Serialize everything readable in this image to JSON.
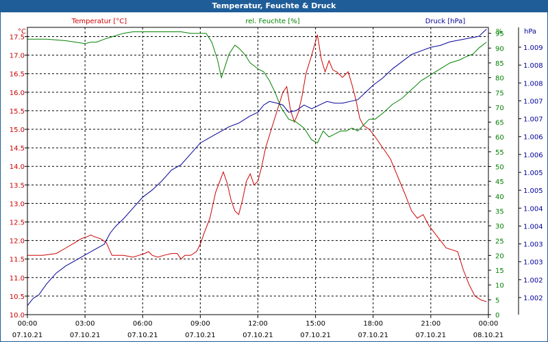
{
  "window": {
    "title": "Temperatur, Feuchte & Druck"
  },
  "colors": {
    "temperature": "#cc0000",
    "humidity": "#008000",
    "pressure": "#000099",
    "grid": "#000000",
    "title_bg": "#1f5d99"
  },
  "chart_data": {
    "type": "line",
    "title": "Temperatur, Feuchte & Druck",
    "x_ticks": [
      {
        "time": "00:00",
        "date": "07.10.21"
      },
      {
        "time": "03:00",
        "date": "07.10.21"
      },
      {
        "time": "06:00",
        "date": "07.10.21"
      },
      {
        "time": "09:00",
        "date": "07.10.21"
      },
      {
        "time": "12:00",
        "date": "07.10.21"
      },
      {
        "time": "15:00",
        "date": "07.10.21"
      },
      {
        "time": "18:00",
        "date": "07.10.21"
      },
      {
        "time": "21:00",
        "date": "07.10.21"
      },
      {
        "time": "00:00",
        "date": "08.10.21"
      }
    ],
    "xlim": [
      0,
      24
    ],
    "axes": {
      "temperature": {
        "label": "Temperatur [°C]",
        "unit": "°C",
        "ylim": [
          10.0,
          17.75
        ],
        "ticks": [
          "10.0",
          "10.5",
          "11.0",
          "11.5",
          "12.0",
          "12.5",
          "13.0",
          "13.5",
          "14.0",
          "14.5",
          "15.0",
          "15.5",
          "16.0",
          "16.5",
          "17.0",
          "17.5"
        ]
      },
      "humidity": {
        "label": "rel. Feuchte [%]",
        "unit": "%",
        "ylim": [
          0,
          97
        ],
        "ticks": [
          "0",
          "5",
          "10",
          "15",
          "20",
          "25",
          "30",
          "35",
          "40",
          "45",
          "50",
          "55",
          "60",
          "65",
          "70",
          "75",
          "80",
          "85",
          "90",
          "95"
        ]
      },
      "pressure": {
        "label": "Druck [hPa]",
        "unit": "hPa",
        "ylim": [
          1001.65,
          1009.6
        ],
        "ticks": [
          "1.002",
          "1.002",
          "1.003",
          "1.003",
          "1.004",
          "1.004",
          "1.005",
          "1.005",
          "1.006",
          "1.006",
          "1.007",
          "1.007",
          "1.008",
          "1.008",
          "1.009"
        ]
      }
    },
    "series": [
      {
        "name": "Temperatur [°C]",
        "axis": "temperature",
        "x": [
          0,
          0.8,
          1.5,
          2,
          2.5,
          2.8,
          3.1,
          3.3,
          3.5,
          3.8,
          4.1,
          4.4,
          4.7,
          5,
          5.5,
          5.8,
          6.1,
          6.3,
          6.5,
          6.8,
          7.1,
          7.5,
          7.8,
          8,
          8.2,
          8.5,
          8.8,
          9,
          9.2,
          9.5,
          9.8,
          10.2,
          10.4,
          10.6,
          10.8,
          11,
          11.2,
          11.4,
          11.6,
          11.8,
          12,
          12.2,
          12.4,
          12.7,
          13,
          13.3,
          13.5,
          13.7,
          13.9,
          14.1,
          14.3,
          14.5,
          14.8,
          15.1,
          15.3,
          15.5,
          15.7,
          15.9,
          16.1,
          16.4,
          16.7,
          16.9,
          17.1,
          17.3,
          17.5,
          17.8,
          18.1,
          18.5,
          18.9,
          19.3,
          19.7,
          20,
          20.3,
          20.6,
          20.9,
          21.2,
          21.5,
          21.8,
          22.1,
          22.4,
          22.7,
          23,
          23.3,
          23.6,
          23.9
        ],
        "y": [
          11.6,
          11.6,
          11.65,
          11.8,
          11.95,
          12.05,
          12.1,
          12.15,
          12.1,
          12.05,
          11.95,
          11.6,
          11.6,
          11.6,
          11.55,
          11.6,
          11.65,
          11.7,
          11.6,
          11.55,
          11.6,
          11.65,
          11.65,
          11.5,
          11.6,
          11.6,
          11.7,
          11.9,
          12.2,
          12.6,
          13.3,
          13.85,
          13.55,
          13.1,
          12.8,
          12.7,
          13.1,
          13.6,
          13.8,
          13.5,
          13.6,
          14.0,
          14.5,
          15.0,
          15.5,
          16.0,
          16.15,
          15.5,
          15.2,
          15.45,
          15.9,
          16.5,
          17.0,
          17.55,
          16.9,
          16.55,
          16.85,
          16.6,
          16.55,
          16.4,
          16.55,
          16.2,
          15.8,
          15.3,
          15.1,
          15.0,
          14.8,
          14.5,
          14.2,
          13.7,
          13.2,
          12.8,
          12.6,
          12.7,
          12.4,
          12.2,
          12.0,
          11.8,
          11.75,
          11.7,
          11.2,
          10.8,
          10.5,
          10.4,
          10.35
        ]
      },
      {
        "name": "rel. Feuchte [%]",
        "axis": "humidity",
        "x": [
          0,
          1,
          2,
          2.5,
          3,
          3.3,
          3.6,
          4,
          4.5,
          5,
          5.5,
          6,
          7,
          8,
          8.5,
          9,
          9.3,
          9.6,
          9.9,
          10.1,
          10.3,
          10.5,
          10.8,
          11,
          11.3,
          11.6,
          12,
          12.3,
          12.6,
          12.9,
          13.2,
          13.6,
          14,
          14.4,
          14.8,
          15.1,
          15.4,
          15.7,
          16,
          16.3,
          16.6,
          16.9,
          17.2,
          17.5,
          17.8,
          18.1,
          18.5,
          19,
          19.5,
          20,
          20.5,
          21,
          21.5,
          22,
          22.5,
          22.8,
          23.2,
          23.5,
          23.9
        ],
        "y": [
          93,
          93,
          92.5,
          92,
          91.5,
          92,
          92,
          93,
          94,
          95,
          95.5,
          95.5,
          95.5,
          95.5,
          95,
          95,
          95,
          92,
          86,
          80,
          84,
          88,
          91,
          90,
          88,
          85,
          83,
          82,
          79,
          75,
          70,
          66,
          65,
          63,
          59,
          58,
          62,
          60,
          61,
          62,
          62,
          63,
          62,
          64,
          66,
          66,
          68,
          71,
          73,
          76,
          79,
          81,
          83,
          85,
          86,
          87,
          88,
          90,
          92
        ]
      },
      {
        "name": "Druck [hPa]",
        "axis": "pressure",
        "x": [
          0,
          0.3,
          0.6,
          1,
          1.5,
          2,
          2.5,
          3,
          3.5,
          4,
          4.3,
          4.6,
          5,
          5.5,
          6,
          6.5,
          7,
          7.5,
          8,
          8.5,
          9,
          9.5,
          10,
          10.5,
          11,
          11.3,
          11.6,
          12,
          12.3,
          12.6,
          13,
          13.3,
          13.6,
          14,
          14.4,
          14.8,
          15.2,
          15.6,
          16,
          16.4,
          16.8,
          17.2,
          17.6,
          18,
          18.5,
          19,
          19.5,
          20,
          20.5,
          21,
          21.5,
          22,
          22.5,
          23,
          23.5,
          23.9
        ],
        "y": [
          1001.9,
          1002.1,
          1002.2,
          1002.5,
          1002.8,
          1003.0,
          1003.15,
          1003.3,
          1003.45,
          1003.6,
          1003.9,
          1004.1,
          1004.3,
          1004.6,
          1004.9,
          1005.1,
          1005.35,
          1005.65,
          1005.8,
          1006.1,
          1006.4,
          1006.55,
          1006.7,
          1006.85,
          1006.95,
          1007.05,
          1007.15,
          1007.25,
          1007.45,
          1007.55,
          1007.5,
          1007.45,
          1007.25,
          1007.3,
          1007.45,
          1007.35,
          1007.45,
          1007.55,
          1007.5,
          1007.5,
          1007.55,
          1007.6,
          1007.8,
          1008.0,
          1008.2,
          1008.45,
          1008.65,
          1008.85,
          1008.95,
          1009.05,
          1009.1,
          1009.2,
          1009.25,
          1009.3,
          1009.35,
          1009.55
        ]
      }
    ]
  }
}
